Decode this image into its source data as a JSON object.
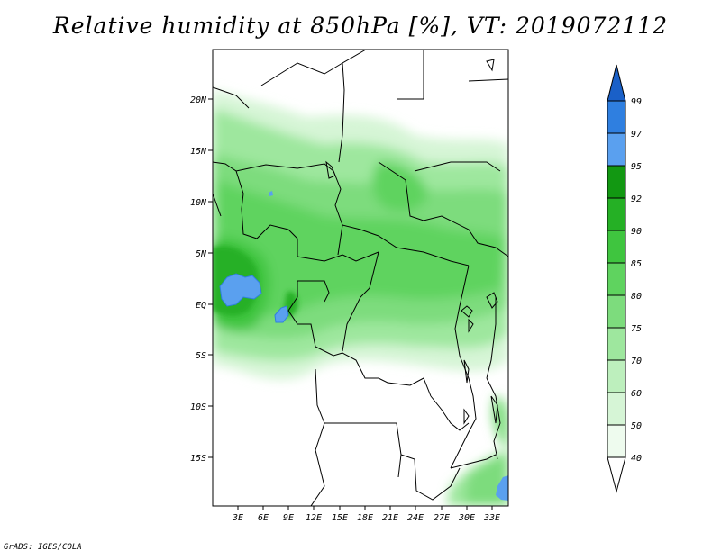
{
  "title": "Relative humidity at 850hPa [%], VT: 2019072112",
  "credit": "GrADS: IGES/COLA",
  "map": {
    "lon_ticks": [
      "3E",
      "6E",
      "9E",
      "12E",
      "15E",
      "18E",
      "21E",
      "24E",
      "27E",
      "30E",
      "33E"
    ],
    "lat_ticks": [
      "20N",
      "15N",
      "10N",
      "5N",
      "EQ",
      "5S",
      "10S",
      "15S"
    ]
  },
  "colorbar": {
    "labels": [
      "40",
      "50",
      "60",
      "70",
      "75",
      "80",
      "85",
      "90",
      "92",
      "95",
      "97",
      "99"
    ],
    "colors": [
      "#ffffff",
      "#eefbee",
      "#d6f5d6",
      "#bdefbd",
      "#9ee79e",
      "#7ddc7d",
      "#5fd35f",
      "#3fc53f",
      "#25b025",
      "#129812",
      "#5aa0ef",
      "#2f7fe0",
      "#1a60c8"
    ]
  }
}
